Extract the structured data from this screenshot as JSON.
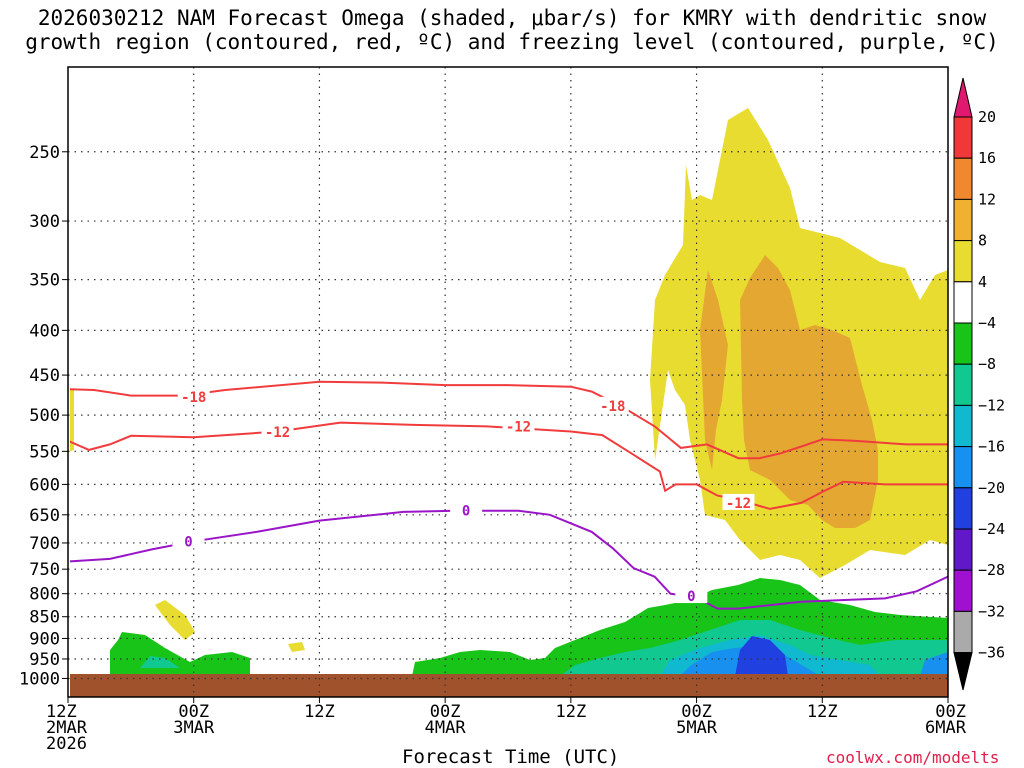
{
  "chart_data": {
    "type": "time-height cross-section",
    "title_line1": "2026030212 NAM Forecast Omega (shaded, μbar/s) for KMRY with dendritic snow",
    "title_line2": "growth region (contoured, red, ºC) and freezing level (contoured, purple, ºC)",
    "xlabel": "Forecast Time (UTC)",
    "ylabel": "",
    "credit": "coolwx.com/modelts",
    "y_axis": {
      "scale": "log-pressure",
      "range_hpa": [
        1050,
        200
      ],
      "ticks": [
        250,
        300,
        350,
        400,
        450,
        500,
        550,
        600,
        650,
        700,
        750,
        800,
        850,
        900,
        950,
        1000
      ]
    },
    "x_axis": {
      "range_hours": [
        0,
        84
      ],
      "ticks": [
        {
          "h": 0,
          "l1": "12Z",
          "l2": "2MAR",
          "l3": "2026"
        },
        {
          "h": 12,
          "l1": "00Z",
          "l2": "3MAR",
          "l3": ""
        },
        {
          "h": 24,
          "l1": "12Z",
          "l2": "",
          "l3": ""
        },
        {
          "h": 36,
          "l1": "00Z",
          "l2": "4MAR",
          "l3": ""
        },
        {
          "h": 48,
          "l1": "12Z",
          "l2": "",
          "l3": ""
        },
        {
          "h": 60,
          "l1": "00Z",
          "l2": "5MAR",
          "l3": ""
        },
        {
          "h": 72,
          "l1": "12Z",
          "l2": "",
          "l3": ""
        },
        {
          "h": 84,
          "l1": "00Z",
          "l2": "6MAR",
          "l3": ""
        }
      ]
    },
    "colorbar": {
      "units": "μbar/s",
      "levels": [
        20,
        16,
        12,
        8,
        4,
        -4,
        -8,
        -12,
        -16,
        -20,
        -24,
        -28,
        -32,
        -36
      ],
      "colors": [
        "#e01870",
        "#f03838",
        "#f08830",
        "#f0b030",
        "#e8dc30",
        "#ffffff",
        "#18c418",
        "#10c890",
        "#10b8d0",
        "#1890f0",
        "#2040e0",
        "#6018c8",
        "#a010d0",
        "#aaaaaa",
        "#000000"
      ]
    },
    "contours": [
      {
        "label": "-18",
        "color": "#f03c3c",
        "points": [
          [
            0,
            467
          ],
          [
            2.5,
            468
          ],
          [
            6,
            475
          ],
          [
            11,
            475
          ],
          [
            15,
            468
          ],
          [
            24,
            458
          ],
          [
            30,
            459
          ],
          [
            36,
            462
          ],
          [
            42,
            462
          ],
          [
            48,
            464
          ],
          [
            50,
            470
          ],
          [
            53,
            490
          ],
          [
            56,
            515
          ],
          [
            58.5,
            545
          ],
          [
            61,
            540
          ],
          [
            64,
            560
          ],
          [
            66,
            560
          ],
          [
            68,
            553
          ],
          [
            70,
            543
          ],
          [
            72,
            533
          ],
          [
            75,
            535
          ],
          [
            80,
            540
          ],
          [
            84,
            540
          ]
        ],
        "label_at": [
          [
            12,
            477
          ],
          [
            52,
            488
          ]
        ]
      },
      {
        "label": "-12",
        "color": "#f03c3c",
        "points": [
          [
            0,
            535
          ],
          [
            2,
            548
          ],
          [
            4,
            540
          ],
          [
            6,
            528
          ],
          [
            12,
            530
          ],
          [
            17,
            525
          ],
          [
            20,
            522
          ],
          [
            26,
            510
          ],
          [
            33,
            513
          ],
          [
            40,
            515
          ],
          [
            48,
            522
          ],
          [
            51,
            527
          ],
          [
            54,
            555
          ],
          [
            56.5,
            580
          ],
          [
            57,
            610
          ],
          [
            58,
            600
          ],
          [
            60,
            600
          ],
          [
            62,
            618
          ],
          [
            64,
            625
          ],
          [
            67,
            640
          ],
          [
            70,
            630
          ],
          [
            72,
            612
          ],
          [
            74,
            596
          ],
          [
            78,
            600
          ],
          [
            84,
            600
          ]
        ],
        "label_at": [
          [
            20,
            523
          ],
          [
            43,
            515
          ],
          [
            64,
            630
          ]
        ]
      },
      {
        "label": "0",
        "color": "#9a14c8",
        "points": [
          [
            0,
            735
          ],
          [
            4,
            730
          ],
          [
            8,
            712
          ],
          [
            12,
            697
          ],
          [
            18,
            680
          ],
          [
            24,
            660
          ],
          [
            32,
            645
          ],
          [
            37,
            643
          ],
          [
            43,
            643
          ],
          [
            46,
            650
          ],
          [
            50,
            680
          ],
          [
            52,
            710
          ],
          [
            54,
            748
          ],
          [
            56,
            765
          ],
          [
            57.5,
            800
          ],
          [
            60,
            808
          ],
          [
            62,
            832
          ],
          [
            64,
            832
          ],
          [
            70,
            817
          ],
          [
            78,
            810
          ],
          [
            81,
            795
          ],
          [
            84,
            765
          ]
        ],
        "label_at": [
          [
            11.5,
            697
          ],
          [
            38,
            643
          ],
          [
            59.5,
            805
          ]
        ]
      }
    ]
  }
}
